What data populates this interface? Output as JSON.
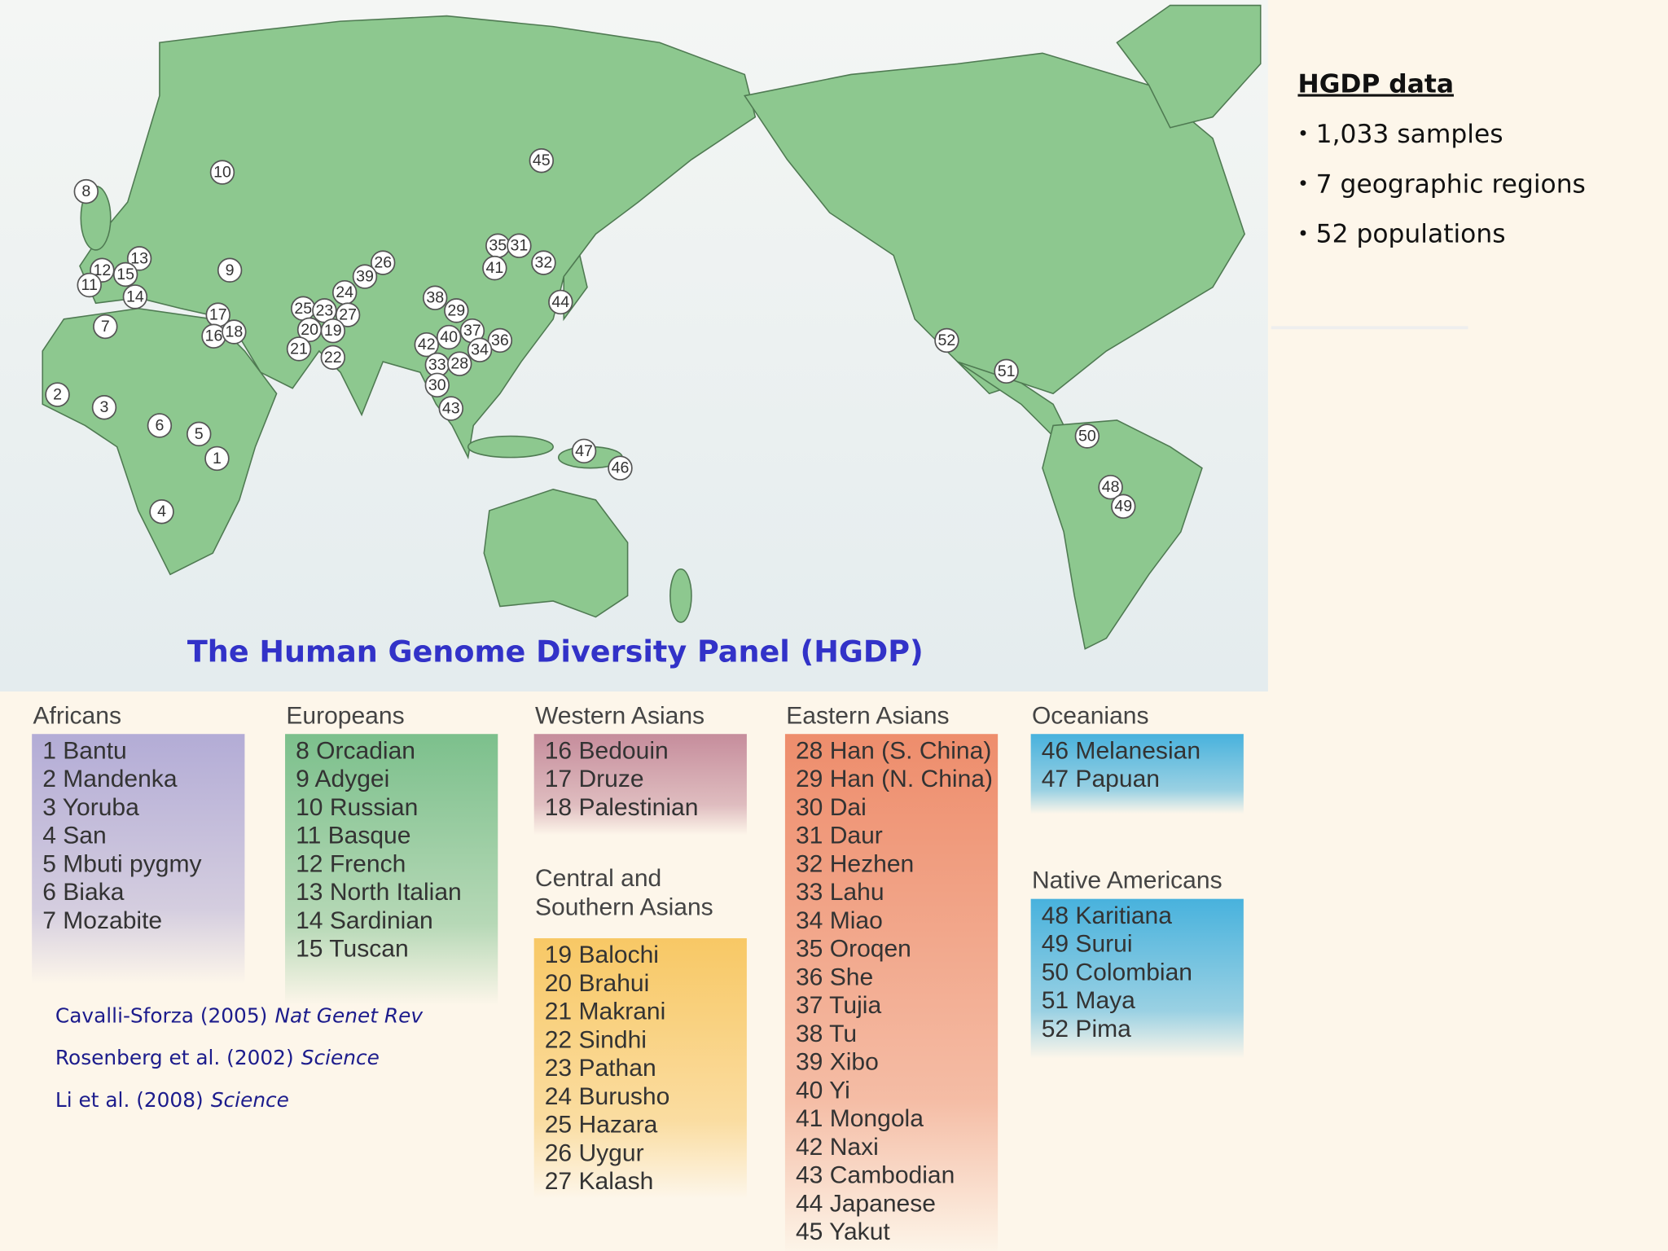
{
  "title": "The Human Genome Diversity Panel (HGDP)",
  "sidebar": {
    "heading": "HGDP data",
    "items": [
      "1,033 samples",
      "7 geographic regions",
      "52 populations"
    ]
  },
  "markers": [
    "45",
    "10",
    "8",
    "26",
    "39",
    "35",
    "31",
    "32",
    "41",
    "9",
    "12",
    "13",
    "15",
    "11",
    "14",
    "24",
    "25",
    "23",
    "27",
    "20",
    "19",
    "21",
    "22",
    "38",
    "29",
    "44",
    "17",
    "16",
    "18",
    "7",
    "37",
    "40",
    "42",
    "36",
    "34",
    "33",
    "28",
    "30",
    "43",
    "2",
    "3",
    "6",
    "5",
    "1",
    "4",
    "47",
    "46",
    "52",
    "51",
    "50",
    "48",
    "49"
  ],
  "groups": [
    {
      "name": "Africans",
      "populations": [
        "1 Bantu",
        "2 Mandenka",
        "3 Yoruba",
        "4 San",
        "5 Mbuti pygmy",
        "6 Biaka",
        "7 Mozabite"
      ]
    },
    {
      "name": "Europeans",
      "populations": [
        "8 Orcadian",
        "9 Adygei",
        "10 Russian",
        "11 Basque",
        "12 French",
        "13 North Italian",
        "14 Sardinian",
        "15 Tuscan"
      ]
    },
    {
      "name": "Western Asians",
      "populations": [
        "16 Bedouin",
        "17 Druze",
        "18 Palestinian"
      ]
    },
    {
      "name": "Central and\nSouthern Asians",
      "populations": [
        "19 Balochi",
        "20 Brahui",
        "21 Makrani",
        "22 Sindhi",
        "23 Pathan",
        "24 Burusho",
        "25 Hazara",
        "26 Uygur",
        "27 Kalash"
      ]
    },
    {
      "name": "Eastern Asians",
      "populations": [
        "28 Han (S. China)",
        "29 Han (N. China)",
        "30 Dai",
        "31 Daur",
        "32 Hezhen",
        "33 Lahu",
        "34 Miao",
        "35 Oroqen",
        "36 She",
        "37 Tujia",
        "38 Tu",
        "39 Xibo",
        "40 Yi",
        "41 Mongola",
        "42 Naxi",
        "43 Cambodian",
        "44 Japanese",
        "45 Yakut"
      ]
    },
    {
      "name": "Oceanians",
      "populations": [
        "46 Melanesian",
        "47 Papuan"
      ]
    },
    {
      "name": "Native Americans",
      "populations": [
        "48 Karitiana",
        "49 Surui",
        "50 Colombian",
        "51 Maya",
        "52 Pima"
      ]
    }
  ],
  "citations": [
    {
      "text": "Cavalli-Sforza (2005)",
      "journal": "Nat Genet Rev"
    },
    {
      "text": "Rosenberg et al. (2002)",
      "journal": "Science"
    },
    {
      "text": "Li et al. (2008)",
      "journal": "Science"
    }
  ]
}
